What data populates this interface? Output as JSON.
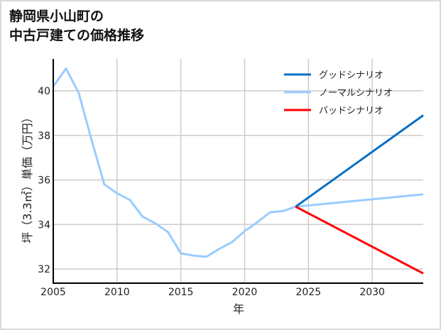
{
  "title_line1": "静岡県小山町の",
  "title_line2": "中古戸建ての価格推移",
  "colors": {
    "good": "#0a70c4",
    "normal": "#99ccff",
    "bad": "#ff0000",
    "grid": "#cccccc",
    "axis": "#000000"
  },
  "chart_data": {
    "type": "line",
    "title": "静岡県小山町の中古戸建ての価格推移",
    "xlabel": "年",
    "ylabel": "坪（3.3㎡）単価（万円）",
    "xlim": [
      2005,
      2034
    ],
    "ylim": [
      31.4,
      41.4
    ],
    "xticks": [
      2005,
      2010,
      2015,
      2020,
      2025,
      2030
    ],
    "yticks": [
      32,
      34,
      36,
      38,
      40
    ],
    "grid": true,
    "legend_position": "upper right",
    "series": [
      {
        "name": "ノーマルシナリオ",
        "color": "#99ccff",
        "x": [
          2005,
          2006,
          2007,
          2008,
          2009,
          2010,
          2011,
          2012,
          2013,
          2014,
          2015,
          2016,
          2017,
          2018,
          2019,
          2020,
          2021,
          2022,
          2023,
          2024,
          2034
        ],
        "values": [
          40.2,
          41.0,
          39.9,
          37.8,
          35.8,
          35.4,
          35.1,
          34.35,
          34.05,
          33.65,
          32.7,
          32.6,
          32.55,
          32.9,
          33.2,
          33.7,
          34.1,
          34.55,
          34.6,
          34.8,
          35.35
        ]
      },
      {
        "name": "グッドシナリオ",
        "color": "#0a70c4",
        "x": [
          2024,
          2034
        ],
        "values": [
          34.8,
          38.9
        ]
      },
      {
        "name": "バッドシナリオ",
        "color": "#ff0000",
        "x": [
          2024,
          2034
        ],
        "values": [
          34.8,
          31.8
        ]
      }
    ]
  },
  "legend": [
    {
      "label": "グッドシナリオ",
      "color": "#0a70c4"
    },
    {
      "label": "ノーマルシナリオ",
      "color": "#99ccff"
    },
    {
      "label": "バッドシナリオ",
      "color": "#ff0000"
    }
  ],
  "xlabel": "年",
  "ylabel": "坪（3.3㎡）単価（万円）"
}
